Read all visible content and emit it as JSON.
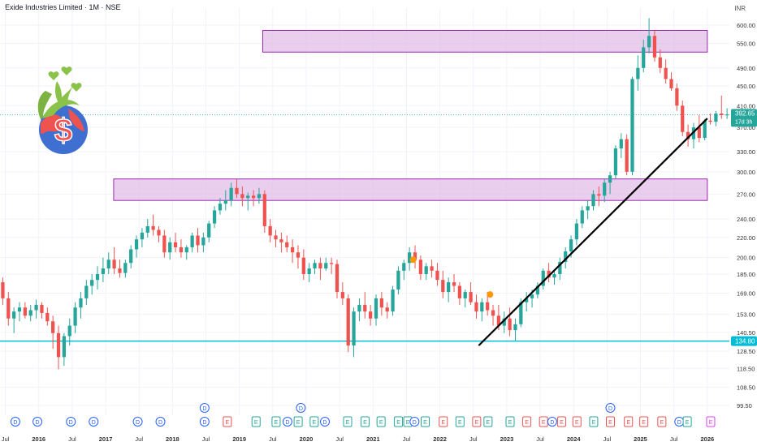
{
  "header": {
    "title": "Exide Industries Limited · 1M · NSE",
    "currency": "INR"
  },
  "colors": {
    "up": "#26a69a",
    "down": "#ef5350",
    "zone_fill": "#e1bee7",
    "zone_stroke": "#9c27b0",
    "support_line": "#00bcd4",
    "trendline": "#000000",
    "grid": "#f0f3fa"
  },
  "price_tag": {
    "value": "392.65",
    "timer": "17d 3h"
  },
  "support_tag": {
    "value": "134.80"
  },
  "chart_data": {
    "type": "candlestick",
    "y_scale": "log",
    "y_ticks": [
      "99.50",
      "108.50",
      "118.50",
      "128.50",
      "140.50",
      "153.00",
      "169.00",
      "185.00",
      "200.00",
      "220.00",
      "240.00",
      "270.00",
      "300.00",
      "330.00",
      "370.00",
      "410.00",
      "450.00",
      "490.00",
      "550.00",
      "600.00"
    ],
    "x_ticks": [
      "Jul",
      "2016",
      "Jul",
      "2017",
      "Jul",
      "2018",
      "Jul",
      "2019",
      "Jul",
      "2020",
      "Jul",
      "2021",
      "Jul",
      "2022",
      "Jul",
      "2023",
      "Jul",
      "2024",
      "Jul",
      "2025",
      "Jul",
      "2026"
    ],
    "x_tick_times": [
      2015.5,
      2016,
      2016.5,
      2017,
      2017.5,
      2018,
      2018.5,
      2019,
      2019.5,
      2020,
      2020.5,
      2021,
      2021.5,
      2022,
      2022.5,
      2023,
      2023.5,
      2024,
      2024.5,
      2025,
      2025.5,
      2026
    ],
    "x_range": [
      2015.42,
      2026.33
    ],
    "y_range": [
      95,
      650
    ],
    "candles_start": 2015.42,
    "candles": [
      [
        178,
        182,
        160,
        165
      ],
      [
        165,
        170,
        145,
        150
      ],
      [
        150,
        158,
        140,
        155
      ],
      [
        155,
        162,
        148,
        158
      ],
      [
        158,
        162,
        150,
        152
      ],
      [
        152,
        160,
        148,
        156
      ],
      [
        156,
        164,
        150,
        160
      ],
      [
        160,
        162,
        150,
        154
      ],
      [
        154,
        158,
        145,
        148
      ],
      [
        148,
        152,
        130,
        140
      ],
      [
        140,
        145,
        118,
        125
      ],
      [
        125,
        140,
        120,
        138
      ],
      [
        138,
        150,
        132,
        145
      ],
      [
        145,
        162,
        140,
        158
      ],
      [
        158,
        170,
        150,
        165
      ],
      [
        165,
        180,
        160,
        175
      ],
      [
        175,
        185,
        168,
        180
      ],
      [
        180,
        192,
        172,
        185
      ],
      [
        185,
        200,
        178,
        190
      ],
      [
        190,
        205,
        185,
        198
      ],
      [
        198,
        210,
        185,
        190
      ],
      [
        190,
        198,
        182,
        186
      ],
      [
        186,
        198,
        182,
        195
      ],
      [
        195,
        212,
        190,
        208
      ],
      [
        208,
        222,
        200,
        218
      ],
      [
        218,
        230,
        210,
        225
      ],
      [
        225,
        240,
        220,
        232
      ],
      [
        232,
        245,
        222,
        228
      ],
      [
        228,
        232,
        215,
        222
      ],
      [
        222,
        228,
        200,
        205
      ],
      [
        205,
        220,
        198,
        215
      ],
      [
        215,
        225,
        205,
        210
      ],
      [
        210,
        218,
        200,
        205
      ],
      [
        205,
        212,
        198,
        210
      ],
      [
        210,
        225,
        205,
        222
      ],
      [
        222,
        230,
        205,
        212
      ],
      [
        212,
        225,
        205,
        220
      ],
      [
        220,
        238,
        215,
        235
      ],
      [
        235,
        255,
        230,
        250
      ],
      [
        250,
        265,
        245,
        258
      ],
      [
        258,
        275,
        250,
        262
      ],
      [
        262,
        285,
        255,
        278
      ],
      [
        278,
        290,
        265,
        270
      ],
      [
        270,
        280,
        255,
        265
      ],
      [
        265,
        272,
        250,
        268
      ],
      [
        268,
        275,
        255,
        265
      ],
      [
        265,
        278,
        258,
        270
      ],
      [
        270,
        275,
        225,
        232
      ],
      [
        232,
        240,
        215,
        222
      ],
      [
        222,
        228,
        210,
        218
      ],
      [
        218,
        225,
        205,
        215
      ],
      [
        215,
        222,
        205,
        210
      ],
      [
        210,
        218,
        195,
        205
      ],
      [
        205,
        212,
        190,
        200
      ],
      [
        200,
        208,
        180,
        185
      ],
      [
        185,
        195,
        178,
        190
      ],
      [
        190,
        198,
        185,
        195
      ],
      [
        195,
        200,
        180,
        190
      ],
      [
        190,
        200,
        188,
        195
      ],
      [
        195,
        200,
        185,
        194
      ],
      [
        194,
        198,
        165,
        170
      ],
      [
        170,
        178,
        160,
        165
      ],
      [
        165,
        168,
        128,
        132
      ],
      [
        132,
        158,
        125,
        155
      ],
      [
        155,
        165,
        148,
        160
      ],
      [
        160,
        170,
        150,
        155
      ],
      [
        155,
        160,
        145,
        150
      ],
      [
        150,
        168,
        145,
        165
      ],
      [
        165,
        170,
        152,
        158
      ],
      [
        158,
        162,
        150,
        155
      ],
      [
        155,
        175,
        152,
        172
      ],
      [
        172,
        192,
        168,
        188
      ],
      [
        188,
        198,
        180,
        195
      ],
      [
        195,
        210,
        188,
        205
      ],
      [
        205,
        212,
        190,
        198
      ],
      [
        198,
        202,
        180,
        185
      ],
      [
        185,
        195,
        180,
        192
      ],
      [
        192,
        198,
        182,
        188
      ],
      [
        188,
        195,
        175,
        180
      ],
      [
        180,
        188,
        165,
        170
      ],
      [
        170,
        182,
        162,
        178
      ],
      [
        178,
        185,
        170,
        175
      ],
      [
        175,
        178,
        160,
        165
      ],
      [
        165,
        172,
        158,
        170
      ],
      [
        170,
        178,
        160,
        162
      ],
      [
        162,
        168,
        150,
        155
      ],
      [
        155,
        165,
        148,
        162
      ],
      [
        162,
        170,
        152,
        156
      ],
      [
        156,
        160,
        145,
        152
      ],
      [
        152,
        160,
        142,
        145
      ],
      [
        145,
        155,
        140,
        150
      ],
      [
        150,
        158,
        138,
        142
      ],
      [
        142,
        150,
        135,
        146
      ],
      [
        146,
        165,
        144,
        162
      ],
      [
        162,
        170,
        155,
        165
      ],
      [
        165,
        172,
        158,
        168
      ],
      [
        168,
        178,
        165,
        175
      ],
      [
        175,
        190,
        172,
        188
      ],
      [
        188,
        195,
        178,
        182
      ],
      [
        182,
        188,
        176,
        185
      ],
      [
        185,
        200,
        180,
        196
      ],
      [
        196,
        210,
        190,
        206
      ],
      [
        206,
        222,
        200,
        218
      ],
      [
        218,
        240,
        212,
        235
      ],
      [
        235,
        255,
        230,
        250
      ],
      [
        250,
        262,
        240,
        255
      ],
      [
        255,
        275,
        250,
        270
      ],
      [
        270,
        280,
        255,
        268
      ],
      [
        268,
        290,
        260,
        285
      ],
      [
        285,
        300,
        270,
        295
      ],
      [
        295,
        340,
        290,
        335
      ],
      [
        335,
        360,
        320,
        350
      ],
      [
        350,
        358,
        295,
        300
      ],
      [
        300,
        470,
        295,
        465
      ],
      [
        465,
        520,
        440,
        490
      ],
      [
        490,
        560,
        480,
        540
      ],
      [
        540,
        620,
        525,
        570
      ],
      [
        570,
        585,
        505,
        515
      ],
      [
        515,
        535,
        478,
        490
      ],
      [
        490,
        510,
        455,
        465
      ],
      [
        465,
        480,
        440,
        445
      ],
      [
        445,
        455,
        400,
        410
      ],
      [
        410,
        420,
        355,
        362
      ],
      [
        362,
        375,
        338,
        350
      ],
      [
        350,
        378,
        335,
        370
      ],
      [
        370,
        392,
        345,
        352
      ],
      [
        352,
        385,
        348,
        382
      ],
      [
        382,
        395,
        375,
        380
      ],
      [
        380,
        400,
        372,
        395
      ],
      [
        395,
        430,
        385,
        392
      ],
      [
        392,
        405,
        385,
        393
      ]
    ],
    "zones": [
      {
        "price_top": 585,
        "price_bottom": 528,
        "t_start": 2019.35,
        "t_end": 2026.0
      },
      {
        "price_top": 290,
        "price_bottom": 262,
        "t_start": 2017.12,
        "t_end": 2026.0
      }
    ],
    "support_level": 134.8,
    "trendline": {
      "t1": 2022.58,
      "p1": 132,
      "t2": 2026.0,
      "p2": 386
    },
    "markers": [
      {
        "t": 2021.6,
        "price": 198,
        "color": "#ff9800"
      },
      {
        "t": 2022.75,
        "price": 168,
        "color": "#ff9800"
      }
    ],
    "events_row1": [
      {
        "t": 2018.48,
        "label": "D",
        "color": "#2962ff"
      },
      {
        "t": 2019.92,
        "label": "D",
        "color": "#2962ff"
      },
      {
        "t": 2024.55,
        "label": "D",
        "color": "#2962ff"
      }
    ],
    "events_row2": [
      {
        "t": 2015.65,
        "label": "D",
        "color": "#2962ff"
      },
      {
        "t": 2015.98,
        "label": "D",
        "color": "#2962ff"
      },
      {
        "t": 2016.48,
        "label": "D",
        "color": "#2962ff"
      },
      {
        "t": 2016.82,
        "label": "D",
        "color": "#2962ff"
      },
      {
        "t": 2017.48,
        "label": "D",
        "color": "#2962ff"
      },
      {
        "t": 2017.82,
        "label": "D",
        "color": "#2962ff"
      },
      {
        "t": 2018.48,
        "label": "D",
        "color": "#2962ff"
      },
      {
        "t": 2018.82,
        "label": "E",
        "color": "#ef5350"
      },
      {
        "t": 2019.25,
        "label": "E",
        "color": "#26a69a"
      },
      {
        "t": 2019.55,
        "label": "E",
        "color": "#26a69a"
      },
      {
        "t": 2019.72,
        "label": "D",
        "color": "#2962ff"
      },
      {
        "t": 2019.88,
        "label": "E",
        "color": "#26a69a"
      },
      {
        "t": 2020.12,
        "label": "E",
        "color": "#26a69a"
      },
      {
        "t": 2020.28,
        "label": "D",
        "color": "#2962ff"
      },
      {
        "t": 2020.62,
        "label": "E",
        "color": "#26a69a"
      },
      {
        "t": 2020.88,
        "label": "E",
        "color": "#26a69a"
      },
      {
        "t": 2021.12,
        "label": "E",
        "color": "#26a69a"
      },
      {
        "t": 2021.38,
        "label": "E",
        "color": "#26a69a"
      },
      {
        "t": 2021.52,
        "label": "E",
        "color": "#26a69a"
      },
      {
        "t": 2021.62,
        "label": "D",
        "color": "#2962ff"
      },
      {
        "t": 2021.78,
        "label": "E",
        "color": "#26a69a"
      },
      {
        "t": 2022.05,
        "label": "E",
        "color": "#ef5350"
      },
      {
        "t": 2022.3,
        "label": "E",
        "color": "#26a69a"
      },
      {
        "t": 2022.55,
        "label": "E",
        "color": "#ef5350"
      },
      {
        "t": 2022.72,
        "label": "E",
        "color": "#26a69a"
      },
      {
        "t": 2023.05,
        "label": "E",
        "color": "#26a69a"
      },
      {
        "t": 2023.3,
        "label": "E",
        "color": "#ef5350"
      },
      {
        "t": 2023.55,
        "label": "E",
        "color": "#ef5350"
      },
      {
        "t": 2023.68,
        "label": "D",
        "color": "#2962ff"
      },
      {
        "t": 2023.82,
        "label": "E",
        "color": "#ef5350"
      },
      {
        "t": 2024.05,
        "label": "E",
        "color": "#ef5350"
      },
      {
        "t": 2024.3,
        "label": "E",
        "color": "#26a69a"
      },
      {
        "t": 2024.55,
        "label": "E",
        "color": "#ef5350"
      },
      {
        "t": 2024.82,
        "label": "E",
        "color": "#ef5350"
      },
      {
        "t": 2025.05,
        "label": "E",
        "color": "#ef5350"
      },
      {
        "t": 2025.32,
        "label": "E",
        "color": "#ef5350"
      },
      {
        "t": 2025.58,
        "label": "D",
        "color": "#2962ff"
      },
      {
        "t": 2025.7,
        "label": "E",
        "color": "#26a69a"
      },
      {
        "t": 2026.05,
        "label": "E",
        "color": "#e040fb"
      }
    ]
  }
}
